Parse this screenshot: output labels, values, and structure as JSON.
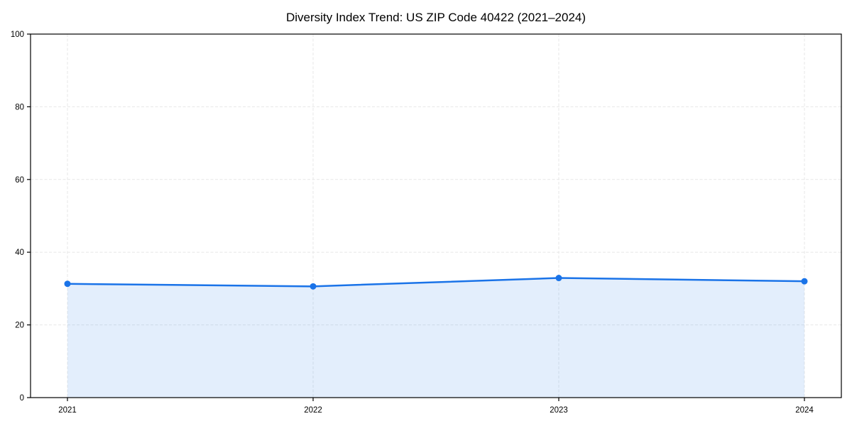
{
  "chart_data": {
    "type": "area",
    "title": "Diversity Index Trend: US ZIP Code 40422 (2021–2024)",
    "x": [
      "2021",
      "2022",
      "2023",
      "2024"
    ],
    "series": [
      {
        "name": "Diversity Index",
        "values": [
          31.3,
          30.6,
          32.9,
          32.0
        ]
      }
    ],
    "xlabel": "",
    "ylabel": "",
    "ylim": [
      0,
      100
    ],
    "yticks": [
      0,
      20,
      40,
      60,
      80,
      100
    ],
    "grid": true,
    "grid_style": "dashed",
    "legend": "none",
    "colors": {
      "line": "#1a73e8",
      "marker": "#1a73e8",
      "fill": "rgba(26,115,232,0.12)",
      "grid": "#e7e7e7",
      "axis": "#000000",
      "background": "#ffffff"
    }
  }
}
